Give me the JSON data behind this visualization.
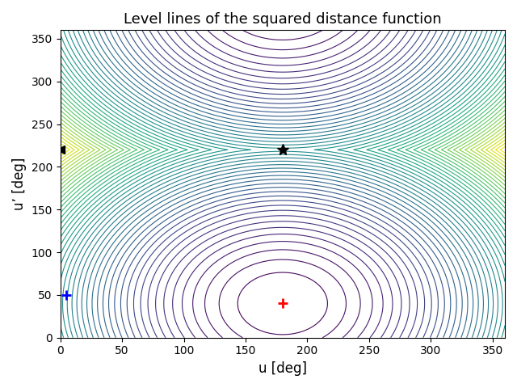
{
  "title": "Level lines of the squared distance function",
  "xlabel": "u [deg]",
  "ylabel": "u’ [deg]",
  "xlim": [
    0,
    360
  ],
  "ylim": [
    0,
    360
  ],
  "xticks": [
    0,
    50,
    100,
    150,
    200,
    250,
    300,
    350
  ],
  "yticks": [
    0,
    50,
    100,
    150,
    200,
    250,
    300,
    350
  ],
  "red_cross": [
    180,
    40
  ],
  "black_star": [
    180,
    220
  ],
  "blue_cross": [
    5,
    50
  ],
  "black_triangle": [
    0,
    220
  ],
  "colormap": "viridis",
  "n_levels": 50,
  "u0": 180,
  "u0p": 40,
  "period": 360,
  "background": "white"
}
